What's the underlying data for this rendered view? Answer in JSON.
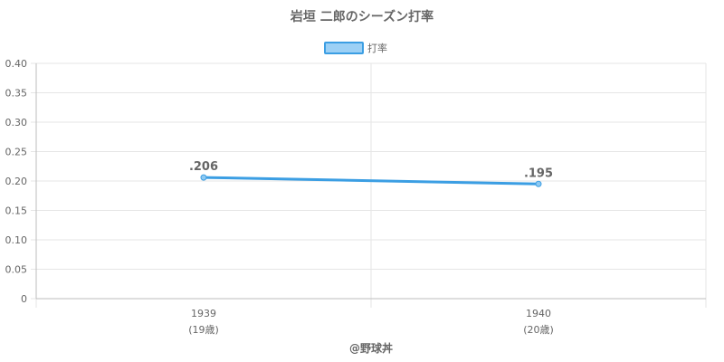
{
  "chart_data": {
    "type": "line",
    "title": "岩垣 二郎のシーズン打率",
    "categories": [
      "1939",
      "1940"
    ],
    "category_sublabels": [
      "(19歳)",
      "(20歳)"
    ],
    "series": [
      {
        "name": "打率",
        "values": [
          0.206,
          0.195
        ],
        "labels": [
          ".206",
          ".195"
        ]
      }
    ],
    "ylim": [
      0,
      0.4
    ],
    "yticks": [
      "0",
      "0.05",
      "0.10",
      "0.15",
      "0.20",
      "0.25",
      "0.30",
      "0.35",
      "0.40"
    ],
    "ytick_values": [
      0,
      0.05,
      0.1,
      0.15,
      0.2,
      0.25,
      0.3,
      0.35,
      0.4
    ],
    "grid": true,
    "legend_position": "top",
    "colors": {
      "line": "#3b9ee3",
      "point_fill": "#8ec9f2",
      "legend_fill": "#9cd0f5",
      "grid": "#e6e6e6",
      "axis": "#bdbdbd"
    }
  },
  "footer": {
    "credit": "@野球丼"
  }
}
